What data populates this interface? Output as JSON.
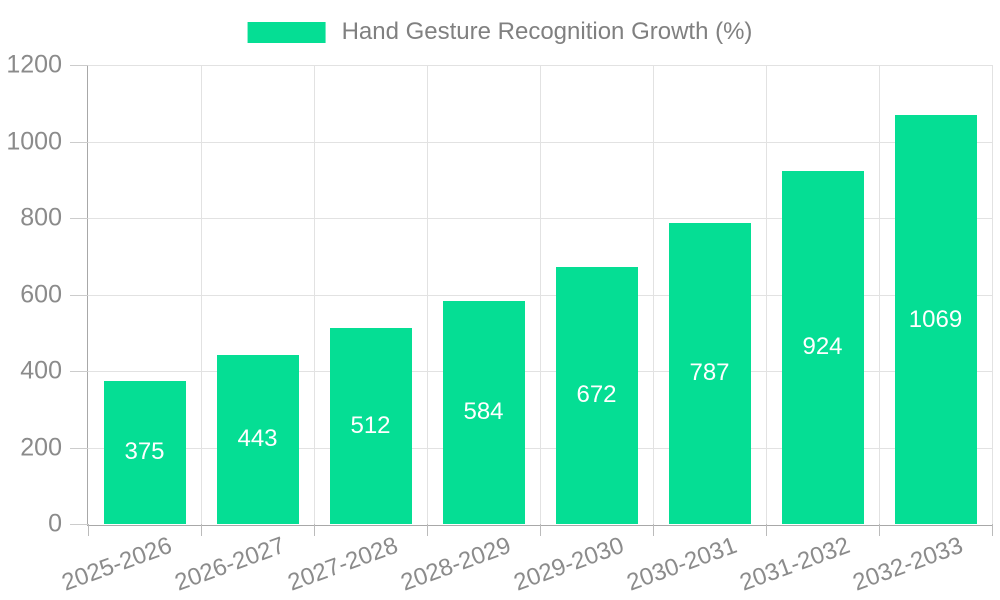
{
  "legend": {
    "label": "Hand Gesture Recognition Growth (%)"
  },
  "chart_data": {
    "type": "bar",
    "title": "Hand Gesture Recognition Growth (%)",
    "categories": [
      "2025-2026",
      "2026-2027",
      "2027-2028",
      "2028-2029",
      "2029-2030",
      "2030-2031",
      "2031-2032",
      "2032-2033"
    ],
    "values": [
      375,
      443,
      512,
      584,
      672,
      787,
      924,
      1069
    ],
    "xlabel": "",
    "ylabel": "",
    "ylim": [
      0,
      1200
    ],
    "yticks": [
      0,
      200,
      400,
      600,
      800,
      1000,
      1200
    ],
    "grid": true,
    "legend_position": "top-center",
    "colors": {
      "bar": "#05de94",
      "grid": "#e2e2e2",
      "axis_line": "#a8a8a8",
      "y_tick_mark": "#cccccc",
      "x_tick_mark": "#bbbbbb",
      "axis_text": "#8b8b8b",
      "value_label": "#ffffff",
      "legend_text": "#808080"
    }
  }
}
